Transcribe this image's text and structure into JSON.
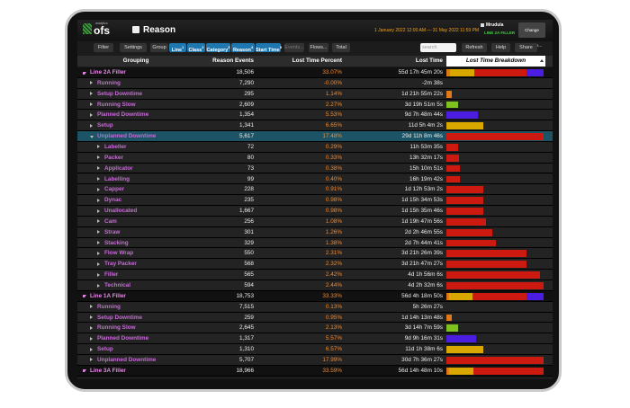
{
  "header": {
    "logo": "ofs",
    "logo_sub": "analytics",
    "title": "Reason",
    "date_range": "1 January 2022 12:00 AM — 31 May 2022 11:59 PM",
    "user": "Mrudula",
    "line": "LINE 2A FILLER",
    "change_button": "Change Selection..."
  },
  "toolbar": {
    "left": [
      {
        "label": "Filter"
      },
      {
        "label": "Settings"
      },
      {
        "label": "Group"
      }
    ],
    "groups": [
      {
        "label": "Line",
        "badge": "1"
      },
      {
        "label": "Class",
        "badge": "2"
      },
      {
        "label": "Category",
        "badge": "3"
      },
      {
        "label": "Reason",
        "badge": "4"
      },
      {
        "label": "Start Time",
        "badge": "5"
      }
    ],
    "more": [
      {
        "label": "Events..."
      },
      {
        "label": "Flows..."
      },
      {
        "label": "Total"
      }
    ],
    "search": "search",
    "right": [
      {
        "label": "Refresh"
      },
      {
        "label": "Help"
      },
      {
        "label": "Share"
      }
    ]
  },
  "table": {
    "columns": [
      "Grouping",
      "Reason Events",
      "Lost Time Percent",
      "Lost Time",
      "Lost Time Breakdown"
    ],
    "rows": [
      {
        "level": 0,
        "expanded": true,
        "grouping": "Line 2A Filler",
        "events": "18,506",
        "percent": "33.07%",
        "time": "55d 17h 45m 20s",
        "bar": [
          [
            "#e07818",
            4
          ],
          [
            "#d9a800",
            25
          ],
          [
            "#cc1a10",
            53
          ],
          [
            "#4b1de0",
            18
          ]
        ]
      },
      {
        "level": 1,
        "grouping": "Running",
        "events": "7,290",
        "percent": "-0.00%",
        "time": "-2m 38s",
        "bar": []
      },
      {
        "level": 1,
        "grouping": "Setup Downtime",
        "events": "295",
        "percent": "1.14%",
        "time": "1d 21h 55m 22s",
        "bar": [
          [
            "#e07818",
            6
          ]
        ]
      },
      {
        "level": 1,
        "grouping": "Running Slow",
        "events": "2,609",
        "percent": "2.27%",
        "time": "3d 19h 51m 5s",
        "bar": [
          [
            "#7ec21d",
            12
          ]
        ]
      },
      {
        "level": 1,
        "grouping": "Planned Downtime",
        "events": "1,354",
        "percent": "5.53%",
        "time": "9d 7h 48m 44s",
        "bar": [
          [
            "#4b1de0",
            32
          ]
        ]
      },
      {
        "level": 1,
        "grouping": "Setup",
        "events": "1,341",
        "percent": "6.65%",
        "time": "11d 5h 4m 2s",
        "bar": [
          [
            "#d9a800",
            38
          ]
        ]
      },
      {
        "level": 1,
        "expanded": true,
        "selected": true,
        "grouping": "Unplanned Downtime",
        "events": "5,617",
        "percent": "17.48%",
        "time": "29d 11h 8m 46s",
        "bar": [
          [
            "#cc1a10",
            100
          ]
        ]
      },
      {
        "level": 2,
        "grouping": "Labeller",
        "events": "72",
        "percent": "0.29%",
        "time": "11h 53m 35s",
        "bar": [
          [
            "#cc1a10",
            12
          ]
        ]
      },
      {
        "level": 2,
        "grouping": "Packer",
        "events": "80",
        "percent": "0.33%",
        "time": "13h 32m 17s",
        "bar": [
          [
            "#cc1a10",
            13
          ]
        ]
      },
      {
        "level": 2,
        "grouping": "Applicator",
        "events": "73",
        "percent": "0.38%",
        "time": "15h 10m 51s",
        "bar": [
          [
            "#cc1a10",
            14
          ]
        ]
      },
      {
        "level": 2,
        "grouping": "Labelling",
        "events": "99",
        "percent": "0.40%",
        "time": "16h 19m 42s",
        "bar": [
          [
            "#cc1a10",
            14
          ]
        ]
      },
      {
        "level": 2,
        "grouping": "Capper",
        "events": "228",
        "percent": "0.91%",
        "time": "1d 12h 53m 2s",
        "bar": [
          [
            "#cc1a10",
            38
          ]
        ]
      },
      {
        "level": 2,
        "grouping": "Dynac",
        "events": "235",
        "percent": "0.98%",
        "time": "1d 15h 34m 53s",
        "bar": [
          [
            "#cc1a10",
            38
          ]
        ]
      },
      {
        "level": 2,
        "grouping": "Unallocated",
        "events": "1,667",
        "percent": "0.98%",
        "time": "1d 15h 35m 46s",
        "bar": [
          [
            "#cc1a10",
            38
          ]
        ]
      },
      {
        "level": 2,
        "grouping": "Cam",
        "events": "256",
        "percent": "1.08%",
        "time": "1d 19h 47m 56s",
        "bar": [
          [
            "#cc1a10",
            41
          ]
        ]
      },
      {
        "level": 2,
        "grouping": "Straw",
        "events": "301",
        "percent": "1.26%",
        "time": "2d 2h 46m 55s",
        "bar": [
          [
            "#cc1a10",
            47
          ]
        ]
      },
      {
        "level": 2,
        "grouping": "Stacking",
        "events": "329",
        "percent": "1.38%",
        "time": "2d 7h 44m 41s",
        "bar": [
          [
            "#cc1a10",
            51
          ]
        ]
      },
      {
        "level": 2,
        "grouping": "Flow Wrap",
        "events": "550",
        "percent": "2.31%",
        "time": "3d 21h 26m 39s",
        "bar": [
          [
            "#cc1a10",
            82
          ]
        ]
      },
      {
        "level": 2,
        "grouping": "Tray Packer",
        "events": "568",
        "percent": "2.32%",
        "time": "3d 21h 47m 27s",
        "bar": [
          [
            "#cc1a10",
            82
          ]
        ]
      },
      {
        "level": 2,
        "grouping": "Filler",
        "events": "565",
        "percent": "2.42%",
        "time": "4d 1h 56m 6s",
        "bar": [
          [
            "#cc1a10",
            96
          ]
        ]
      },
      {
        "level": 2,
        "grouping": "Technical",
        "events": "594",
        "percent": "2.44%",
        "time": "4d 2h 32m 6s",
        "bar": [
          [
            "#cc1a10",
            100
          ]
        ]
      },
      {
        "level": 0,
        "expanded": true,
        "grouping": "Line 1A Filler",
        "events": "18,753",
        "percent": "33.33%",
        "time": "56d 4h 18m 50s",
        "bar": [
          [
            "#e07818",
            3
          ],
          [
            "#d9a800",
            24
          ],
          [
            "#cc1a10",
            55
          ],
          [
            "#4b1de0",
            18
          ]
        ]
      },
      {
        "level": 1,
        "grouping": "Running",
        "events": "7,515",
        "percent": "0.13%",
        "time": "5h 26m 27s",
        "bar": []
      },
      {
        "level": 1,
        "grouping": "Setup Downtime",
        "events": "259",
        "percent": "0.95%",
        "time": "1d 14h 13m 48s",
        "bar": [
          [
            "#e07818",
            6
          ]
        ]
      },
      {
        "level": 1,
        "grouping": "Running Slow",
        "events": "2,645",
        "percent": "2.13%",
        "time": "3d 14h 7m 59s",
        "bar": [
          [
            "#7ec21d",
            12
          ]
        ]
      },
      {
        "level": 1,
        "grouping": "Planned Downtime",
        "events": "1,317",
        "percent": "5.57%",
        "time": "9d 9h 16m 31s",
        "bar": [
          [
            "#4b1de0",
            31
          ]
        ]
      },
      {
        "level": 1,
        "grouping": "Setup",
        "events": "1,310",
        "percent": "6.57%",
        "time": "11d 1h 38m 6s",
        "bar": [
          [
            "#d9a800",
            38
          ]
        ]
      },
      {
        "level": 1,
        "grouping": "Unplanned Downtime",
        "events": "5,707",
        "percent": "17.99%",
        "time": "30d 7h 36m 27s",
        "bar": [
          [
            "#cc1a10",
            100
          ]
        ]
      },
      {
        "level": 0,
        "expanded": true,
        "grouping": "Line 3A Filler",
        "events": "18,966",
        "percent": "33.59%",
        "time": "56d 14h 48m 10s",
        "bar": [
          [
            "#e07818",
            3
          ],
          [
            "#d9a800",
            25
          ],
          [
            "#cc1a10",
            72
          ]
        ]
      }
    ]
  }
}
